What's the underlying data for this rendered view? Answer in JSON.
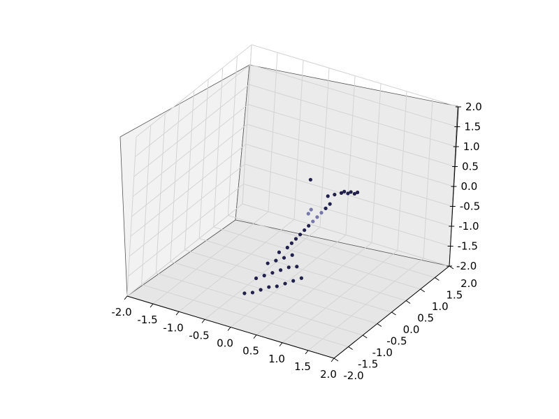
{
  "chart_data": {
    "type": "scatter",
    "projection": "3d",
    "title": "",
    "xlabel": "",
    "ylabel": "",
    "zlabel": "",
    "xlim": [
      -2.0,
      2.0
    ],
    "ylim": [
      -2.0,
      2.0
    ],
    "zlim": [
      -2.0,
      2.0
    ],
    "grid": true,
    "x_ticks": [
      "-2.0",
      "-1.5",
      "-1.0",
      "-0.5",
      "0.0",
      "0.5",
      "1.0",
      "1.5",
      "2.0"
    ],
    "y_ticks": [
      "-2.0",
      "-1.5",
      "-1.0",
      "-0.5",
      "0.0",
      "0.5",
      "1.0",
      "1.5",
      "2.0"
    ],
    "z_ticks": [
      "-2.0",
      "-1.5",
      "-1.0",
      "-0.5",
      "0.0",
      "0.5",
      "1.0",
      "1.5",
      "2.0"
    ],
    "marker_color": "#0b0b3a",
    "outlier_color": "#5a5a9a",
    "pane_color": "#f2f2f2",
    "series": [
      {
        "name": "points",
        "x": [
          -0.4,
          -0.3,
          -0.2,
          -0.1,
          0.0,
          0.1,
          0.2,
          0.3,
          -0.3,
          -0.2,
          -0.1,
          0.0,
          0.1,
          0.2,
          -0.2,
          -0.1,
          0.0,
          0.1,
          -0.1,
          0.0,
          0.05,
          0.1,
          0.15,
          0.2,
          0.25,
          0.3,
          0.35,
          0.4,
          0.45,
          0.5,
          0.4,
          0.5,
          0.6,
          0.7,
          0.8,
          0.55,
          0.65,
          0.75,
          0.2,
          0.0,
          0.1
        ],
        "y": [
          -0.8,
          -0.7,
          -0.6,
          -0.5,
          -0.4,
          -0.3,
          -0.2,
          -0.1,
          -0.6,
          -0.5,
          -0.4,
          -0.3,
          -0.2,
          -0.1,
          -0.4,
          -0.3,
          -0.2,
          -0.1,
          -0.2,
          -0.1,
          -0.05,
          0.0,
          0.05,
          0.1,
          0.15,
          0.2,
          0.25,
          0.3,
          0.35,
          0.4,
          0.5,
          0.55,
          0.6,
          0.65,
          0.7,
          0.8,
          0.85,
          0.9,
          0.3,
          0.6,
          0.4
        ],
        "z": [
          -2.0,
          -2.0,
          -1.95,
          -1.9,
          -1.9,
          -1.85,
          -1.8,
          -1.75,
          -1.7,
          -1.65,
          -1.6,
          -1.55,
          -1.5,
          -1.5,
          -1.4,
          -1.35,
          -1.3,
          -1.25,
          -1.2,
          -1.1,
          -1.0,
          -0.9,
          -0.8,
          -0.7,
          -0.6,
          -0.5,
          -0.4,
          -0.3,
          -0.2,
          -0.1,
          0.0,
          0.05,
          0.1,
          0.1,
          0.1,
          0.0,
          0.0,
          0.0,
          -0.3,
          0.2,
          -0.5
        ]
      }
    ]
  }
}
